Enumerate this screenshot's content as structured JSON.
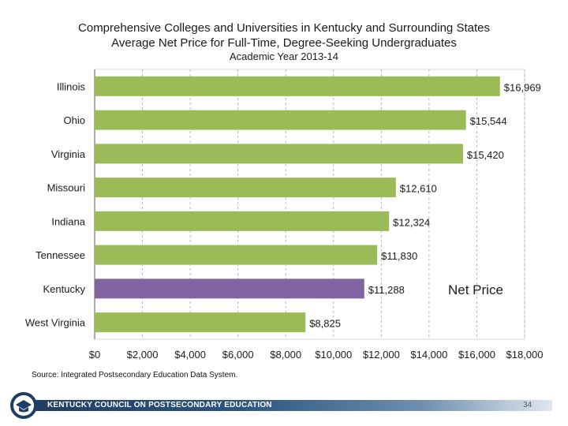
{
  "chart_data": {
    "type": "bar",
    "orientation": "horizontal",
    "title": "Comprehensive Colleges and Universities in Kentucky and Surrounding States",
    "subtitle": "Average Net Price for Full-Time, Degree-Seeking Undergraduates",
    "subtitle2": "Academic Year 2013-14",
    "categories": [
      "Illinois",
      "Ohio",
      "Virginia",
      "Missouri",
      "Indiana",
      "Tennessee",
      "Kentucky",
      "West Virginia"
    ],
    "values": [
      16969,
      15544,
      15420,
      12610,
      12324,
      11830,
      11288,
      8825
    ],
    "data_labels": [
      "$16,969",
      "$15,544",
      "$15,420",
      "$12,610",
      "$12,324",
      "$11,830",
      "$11,288",
      "$8,825"
    ],
    "highlight_category": "Kentucky",
    "xlim": [
      0,
      18000
    ],
    "xticks": [
      0,
      2000,
      4000,
      6000,
      8000,
      10000,
      12000,
      14000,
      16000,
      18000
    ],
    "xtick_labels": [
      "$0",
      "$2,000",
      "$4,000",
      "$6,000",
      "$8,000",
      "$10,000",
      "$12,000",
      "$14,000",
      "$16,000",
      "$18,000"
    ],
    "grid": "vertical dashed",
    "legend": [
      {
        "name": "Net Price"
      }
    ],
    "legend_position": "right of Kentucky bar",
    "colors": {
      "bar": "#9bbb59",
      "highlight": "#8064a2",
      "grid": "#a6a6a6",
      "text": "#1a1a1a"
    }
  },
  "source": "Source: Integrated Postsecondary Education Data System.",
  "footer": {
    "org": "KENTUCKY COUNCIL ON POSTSECONDARY EDUCATION",
    "page_number": "34"
  }
}
